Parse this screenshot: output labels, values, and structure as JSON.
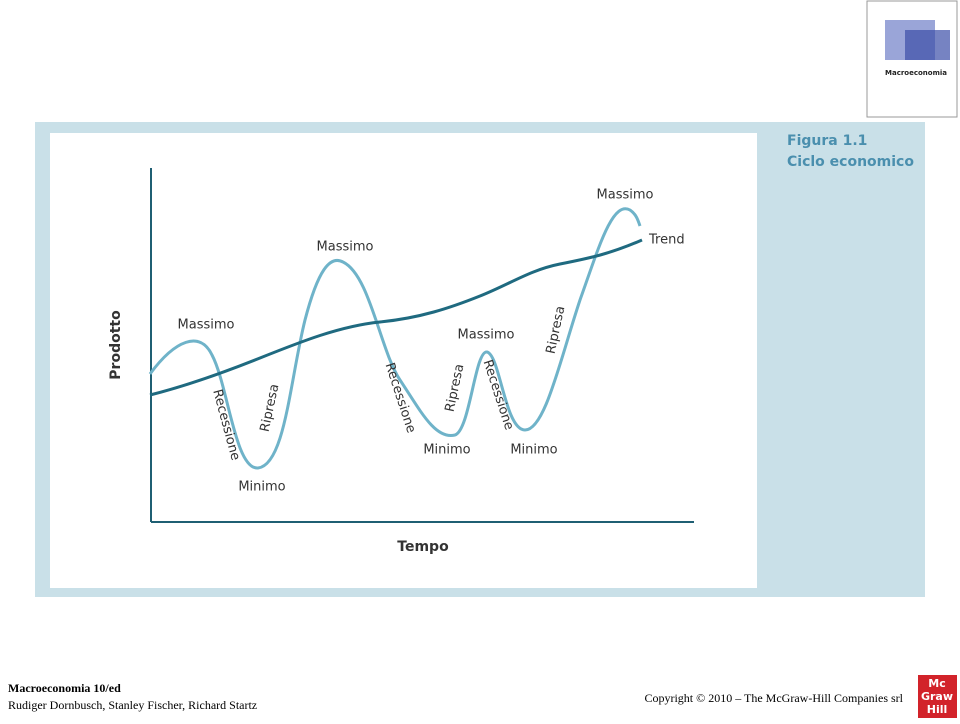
{
  "cover": {
    "title": "Macroeconomia"
  },
  "figure": {
    "title": "Figura 1.1",
    "subtitle": "Ciclo economico",
    "y_axis": "Prodotto",
    "x_axis": "Tempo",
    "labels": [
      "Massimo",
      "Recessione",
      "Minimo",
      "Ripresa",
      "Massimo",
      "Recessione",
      "Minimo",
      "Ripresa",
      "Massimo",
      "Recessione",
      "Minimo",
      "Ripresa",
      "Massimo",
      "Trend"
    ]
  },
  "footer": {
    "book": "Macroeconomia 10/ed",
    "authors": "Rudiger Dornbusch, Stanley Fischer, Richard Startz",
    "copyright": "Copyright © 2010 – The McGraw-Hill Companies srl"
  },
  "logo": [
    "Mc",
    "Graw",
    "Hill"
  ]
}
